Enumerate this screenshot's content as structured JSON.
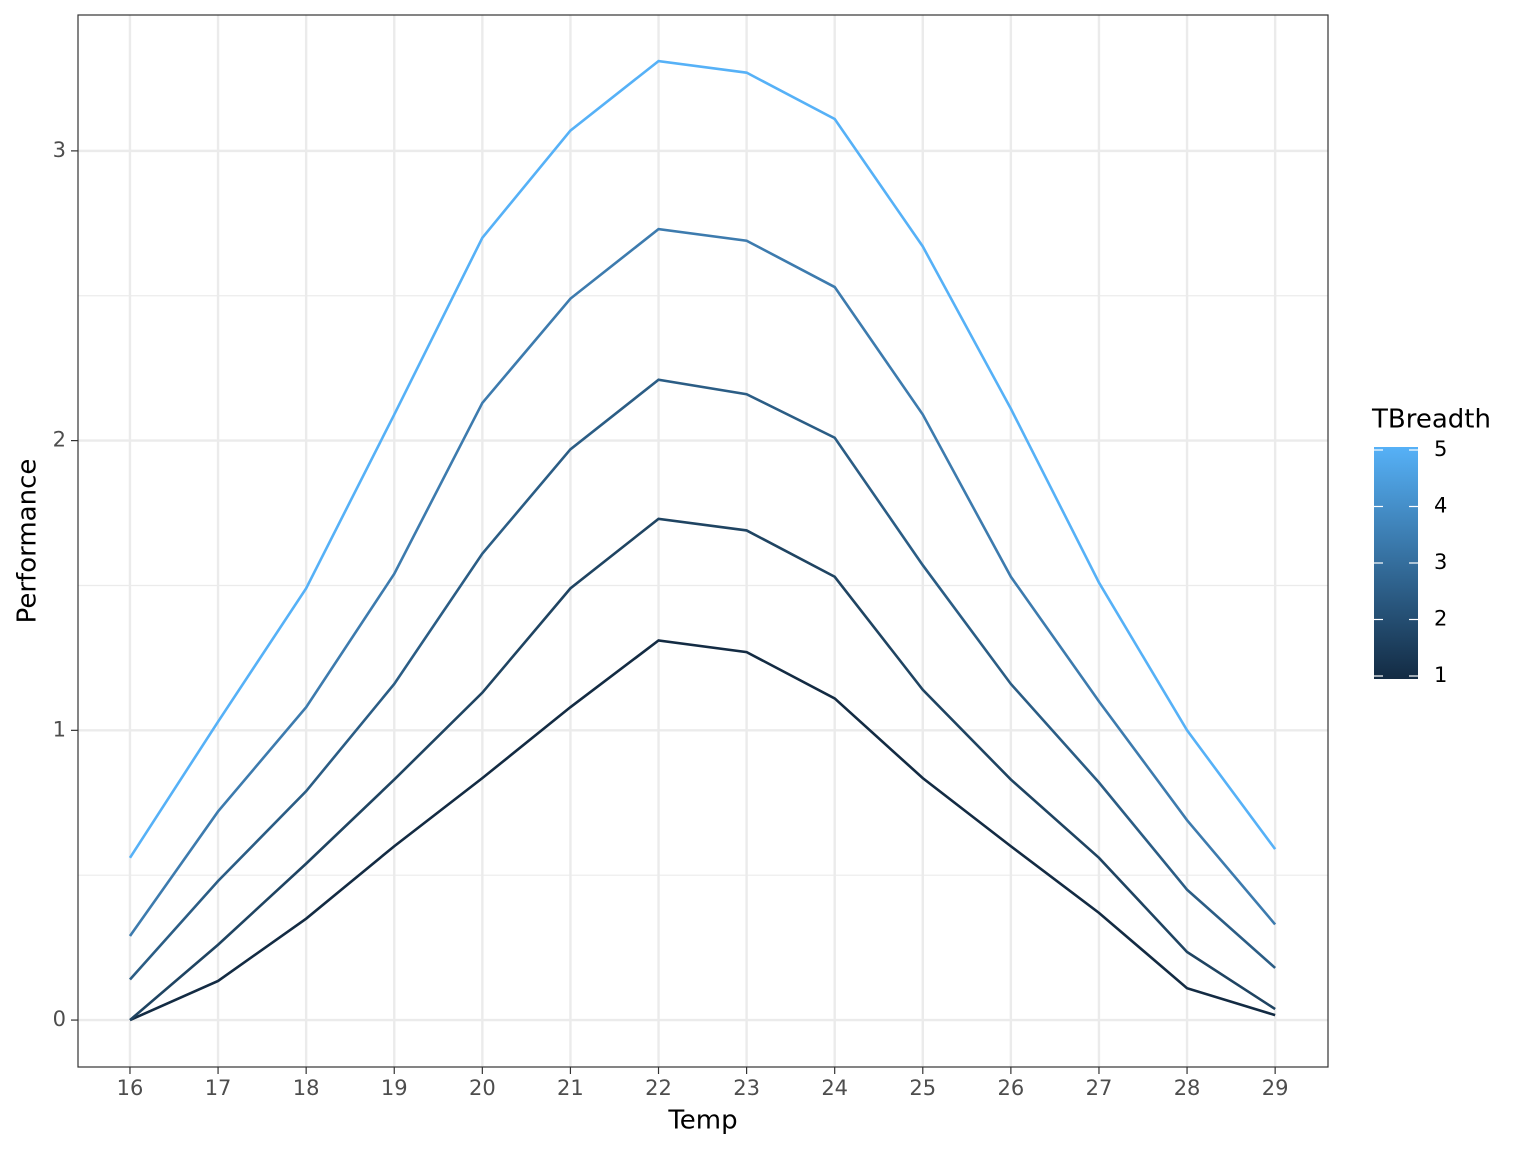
{
  "chart_data": {
    "type": "line",
    "x_label": "Temp",
    "y_label": "Performance",
    "x": [
      16,
      17,
      18,
      19,
      20,
      21,
      22,
      23,
      24,
      25,
      26,
      27,
      28,
      29
    ],
    "series": [
      {
        "color": "#132B43",
        "values": [
          0,
          0.135,
          0.35,
          0.6,
          0.835,
          1.08,
          1.31,
          1.27,
          1.11,
          0.835,
          0.6,
          0.37,
          0.11,
          0.017
        ]
      },
      {
        "color": "#1F4462",
        "values": [
          0,
          0.26,
          0.54,
          0.83,
          1.13,
          1.49,
          1.73,
          1.69,
          1.53,
          1.14,
          0.83,
          0.56,
          0.235,
          0.038
        ]
      },
      {
        "color": "#2B5D85",
        "values": [
          0.14,
          0.48,
          0.79,
          1.16,
          1.61,
          1.97,
          2.21,
          2.16,
          2.01,
          1.57,
          1.16,
          0.82,
          0.45,
          0.18
        ]
      },
      {
        "color": "#3D7BAE",
        "values": [
          0.29,
          0.72,
          1.08,
          1.54,
          2.13,
          2.49,
          2.73,
          2.69,
          2.53,
          2.09,
          1.53,
          1.1,
          0.69,
          0.33
        ]
      },
      {
        "color": "#56B1F7",
        "values": [
          0.56,
          1.03,
          1.49,
          2.09,
          2.7,
          3.07,
          3.31,
          3.27,
          3.11,
          2.67,
          2.11,
          1.51,
          1.0,
          0.59
        ]
      }
    ],
    "xlim": [
      15.41,
      29.6
    ],
    "xticks": [
      16,
      17,
      18,
      19,
      20,
      21,
      22,
      23,
      24,
      25,
      26,
      27,
      28,
      29
    ],
    "ylim": [
      -0.162,
      3.469
    ],
    "yticks": [
      0,
      1,
      2,
      3
    ],
    "yminorticks": [
      0.5,
      1.5,
      2.5
    ],
    "grid": true,
    "colorbar": {
      "title": "TBreadth",
      "low": "#132B43",
      "high": "#56B1F7",
      "lim": [
        1,
        5
      ],
      "ticks": [
        1,
        2,
        3,
        4,
        5
      ]
    }
  }
}
